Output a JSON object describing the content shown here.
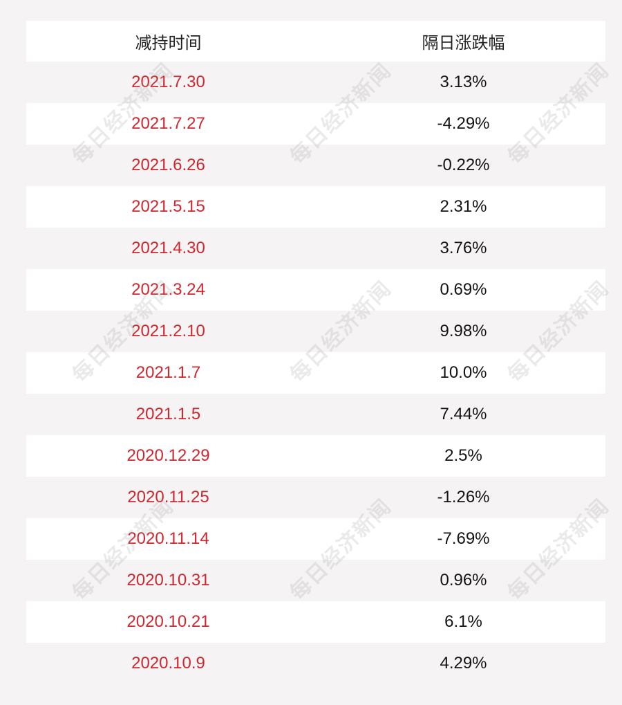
{
  "table": {
    "headers": {
      "date": "减持时间",
      "change": "隔日涨跌幅"
    },
    "rows": [
      {
        "date": "2021.7.30",
        "change": "3.13%"
      },
      {
        "date": "2021.7.27",
        "change": "-4.29%"
      },
      {
        "date": "2021.6.26",
        "change": "-0.22%"
      },
      {
        "date": "2021.5.15",
        "change": "2.31%"
      },
      {
        "date": "2021.4.30",
        "change": "3.76%"
      },
      {
        "date": "2021.3.24",
        "change": "0.69%"
      },
      {
        "date": "2021.2.10",
        "change": "9.98%"
      },
      {
        "date": "2021.1.7",
        "change": "10.0%"
      },
      {
        "date": "2021.1.5",
        "change": "7.44%"
      },
      {
        "date": "2020.12.29",
        "change": "2.5%"
      },
      {
        "date": "2020.11.25",
        "change": "-1.26%"
      },
      {
        "date": "2020.11.14",
        "change": "-7.69%"
      },
      {
        "date": "2020.10.31",
        "change": "0.96%"
      },
      {
        "date": "2020.10.21",
        "change": "6.1%"
      },
      {
        "date": "2020.10.9",
        "change": "4.29%"
      }
    ]
  },
  "watermark": {
    "text": "每日经济新闻"
  },
  "colors": {
    "date_text": "#d0272f",
    "change_text": "#141414",
    "background": "#f6f3f4",
    "row_alt": "#ffffff"
  }
}
